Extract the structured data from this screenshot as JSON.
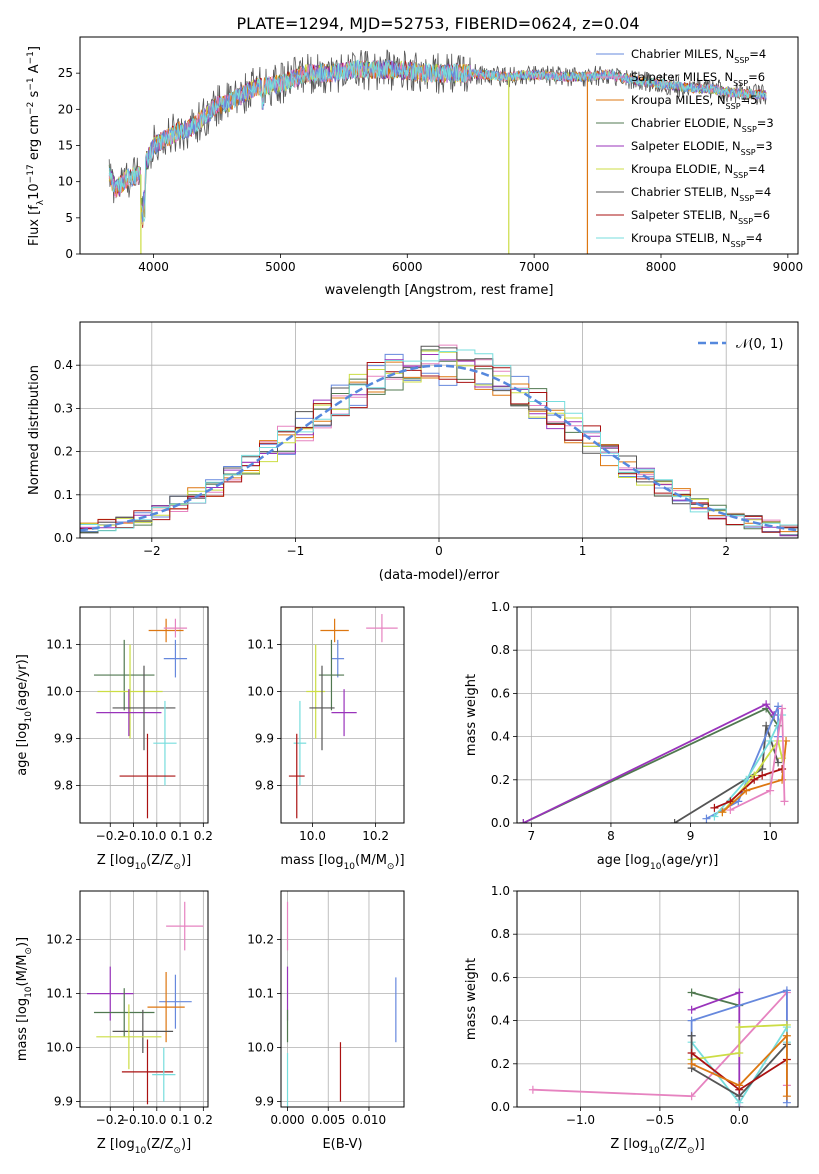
{
  "colors": {
    "Chabrier MILES": "#6688dd",
    "Salpeter MILES": "#e683c0",
    "Kroupa MILES": "#dd7711",
    "Chabrier ELODIE": "#507850",
    "Salpeter ELODIE": "#9933bb",
    "Kroupa ELODIE": "#ccdd44",
    "Chabrier STELIB": "#555555",
    "Salpeter STELIB": "#aa1111",
    "Kroupa STELIB": "#77dddd"
  },
  "chart_data": [
    {
      "id": "spectrum",
      "type": "line",
      "title": "PLATE=1294, MJD=52753, FIBERID=0624, z=0.04",
      "xlabel": "wavelength [Angstrom, rest frame]",
      "ylabel_parts": [
        "Flux [f",
        "λ",
        "10",
        "−17",
        " erg cm",
        "−2",
        " s",
        "−1",
        " A",
        "−1",
        "]"
      ],
      "xlim": [
        3420,
        9080
      ],
      "ylim": [
        0,
        30
      ],
      "xticks": [
        4000,
        5000,
        6000,
        7000,
        8000,
        9000
      ],
      "yticks": [
        0,
        5,
        10,
        15,
        20,
        25
      ],
      "x_range_data": [
        3650,
        8830
      ],
      "continuum_points": [
        [
          3650,
          11
        ],
        [
          3700,
          9
        ],
        [
          3800,
          10.5
        ],
        [
          3900,
          11
        ],
        [
          4000,
          15
        ],
        [
          4100,
          16
        ],
        [
          4200,
          17
        ],
        [
          4300,
          17.5
        ],
        [
          4400,
          19
        ],
        [
          4500,
          20.5
        ],
        [
          4600,
          21
        ],
        [
          4800,
          23
        ],
        [
          5000,
          23.5
        ],
        [
          5200,
          25
        ],
        [
          5400,
          25
        ],
        [
          5600,
          25.5
        ],
        [
          5800,
          25.5
        ],
        [
          6000,
          25.3
        ],
        [
          6200,
          25
        ],
        [
          6400,
          25
        ],
        [
          6600,
          24.8
        ],
        [
          6800,
          24.5
        ],
        [
          7000,
          24.8
        ],
        [
          7200,
          24.5
        ],
        [
          7400,
          24.5
        ],
        [
          7600,
          24.8
        ],
        [
          7800,
          24
        ],
        [
          8000,
          23.5
        ],
        [
          8200,
          23
        ],
        [
          8400,
          22.8
        ],
        [
          8600,
          22.2
        ],
        [
          8830,
          22
        ]
      ],
      "dips": [
        {
          "series": "Kroupa ELODIE",
          "x": 3900,
          "y_min": 0
        },
        {
          "series": "Kroupa ELODIE",
          "x": 6800,
          "y_min": 0
        },
        {
          "series": "Kroupa MILES",
          "x": 7420,
          "y_min": 0
        }
      ],
      "legend_position": "upper right",
      "series": [
        {
          "name": "Chabrier MILES",
          "label": "Chabrier MILES, N",
          "sub": "SSP",
          "suffix": "=4"
        },
        {
          "name": "Salpeter MILES",
          "label": "Salpeter MILES, N",
          "sub": "SSP",
          "suffix": "=6"
        },
        {
          "name": "Kroupa MILES",
          "label": "Kroupa MILES, N",
          "sub": "SSP",
          "suffix": "=5"
        },
        {
          "name": "Chabrier ELODIE",
          "label": "Chabrier ELODIE, N",
          "sub": "SSP",
          "suffix": "=3"
        },
        {
          "name": "Salpeter ELODIE",
          "label": "Salpeter ELODIE, N",
          "sub": "SSP",
          "suffix": "=3"
        },
        {
          "name": "Kroupa ELODIE",
          "label": "Kroupa ELODIE, N",
          "sub": "SSP",
          "suffix": "=4"
        },
        {
          "name": "Chabrier STELIB",
          "label": "Chabrier STELIB, N",
          "sub": "SSP",
          "suffix": "=4"
        },
        {
          "name": "Salpeter STELIB",
          "label": "Salpeter STELIB, N",
          "sub": "SSP",
          "suffix": "=6"
        },
        {
          "name": "Kroupa STELIB",
          "label": "Kroupa STELIB, N",
          "sub": "SSP",
          "suffix": "=4"
        }
      ]
    },
    {
      "id": "residuals",
      "type": "histogram",
      "xlabel": "(data-model)/error",
      "ylabel": "Normed distribution",
      "xlim": [
        -2.5,
        2.5
      ],
      "ylim": [
        0,
        0.5
      ],
      "xticks": [
        -2,
        -1,
        0,
        1,
        2
      ],
      "yticks": [
        0.0,
        0.1,
        0.2,
        0.3,
        0.4
      ],
      "grid": true,
      "bin_width": 0.125,
      "legend_label": "𝒩(0, 1)",
      "legend_position": "upper right",
      "normal_curve": {
        "mean": 0,
        "sigma": 1,
        "color": "#5588dd"
      }
    },
    {
      "id": "age-vs-Z",
      "type": "errorbar",
      "xlabel_parts": [
        "Z [log",
        "10",
        "(Z/Z",
        "⊙",
        ")]"
      ],
      "ylabel_parts": [
        "age  [log",
        "10",
        "(age/yr)]"
      ],
      "xlim": [
        -0.33,
        0.22
      ],
      "ylim": [
        9.72,
        10.18
      ],
      "xticks": [
        -0.2,
        -0.1,
        0.0,
        0.1,
        0.2
      ],
      "yticks": [
        9.8,
        9.9,
        10.0,
        10.1
      ],
      "grid": true,
      "points": [
        {
          "series": "Kroupa MILES",
          "x": 0.04,
          "y": 10.13,
          "xerr": 0.075,
          "yerr": 0.025
        },
        {
          "series": "Salpeter MILES",
          "x": 0.08,
          "y": 10.135,
          "xerr": 0.05,
          "yerr": 0.02
        },
        {
          "series": "Chabrier MILES",
          "x": 0.08,
          "y": 10.07,
          "xerr": 0.05,
          "yerr": 0.04
        },
        {
          "series": "Chabrier ELODIE",
          "x": -0.14,
          "y": 10.035,
          "xerr": 0.13,
          "yerr": 0.075
        },
        {
          "series": "Kroupa ELODIE",
          "x": -0.115,
          "y": 10.0,
          "xerr": 0.14,
          "yerr": 0.1
        },
        {
          "series": "Salpeter ELODIE",
          "x": -0.12,
          "y": 9.955,
          "xerr": 0.14,
          "yerr": 0.05
        },
        {
          "series": "Chabrier STELIB",
          "x": -0.055,
          "y": 9.965,
          "xerr": 0.135,
          "yerr": 0.09
        },
        {
          "series": "Kroupa STELIB",
          "x": 0.035,
          "y": 9.89,
          "xerr": 0.05,
          "yerr": 0.09
        },
        {
          "series": "Salpeter STELIB",
          "x": -0.04,
          "y": 9.82,
          "xerr": 0.12,
          "yerr": 0.09
        }
      ]
    },
    {
      "id": "age-vs-mass",
      "type": "errorbar",
      "xlabel_parts": [
        "mass [log",
        "10",
        "(M/M",
        "⊙",
        ")]"
      ],
      "ylabel_parts": [],
      "xlim": [
        9.9,
        10.29
      ],
      "ylim": [
        9.72,
        10.18
      ],
      "xticks": [
        10.0,
        10.2
      ],
      "yticks": [
        9.8,
        9.9,
        10.0,
        10.1
      ],
      "grid": true,
      "points": [
        {
          "series": "Kroupa MILES",
          "x": 10.07,
          "y": 10.13,
          "xerr": 0.045,
          "yerr": 0.025
        },
        {
          "series": "Salpeter MILES",
          "x": 10.22,
          "y": 10.135,
          "xerr": 0.05,
          "yerr": 0.03
        },
        {
          "series": "Chabrier MILES",
          "x": 10.08,
          "y": 10.07,
          "xerr": 0.02,
          "yerr": 0.04
        },
        {
          "series": "Chabrier ELODIE",
          "x": 10.06,
          "y": 10.035,
          "xerr": 0.04,
          "yerr": 0.075
        },
        {
          "series": "Kroupa ELODIE",
          "x": 10.01,
          "y": 10.0,
          "xerr": 0.03,
          "yerr": 0.1
        },
        {
          "series": "Salpeter ELODIE",
          "x": 10.1,
          "y": 9.955,
          "xerr": 0.04,
          "yerr": 0.05
        },
        {
          "series": "Chabrier STELIB",
          "x": 10.03,
          "y": 9.965,
          "xerr": 0.04,
          "yerr": 0.09
        },
        {
          "series": "Kroupa STELIB",
          "x": 9.96,
          "y": 9.89,
          "xerr": 0.02,
          "yerr": 0.09
        },
        {
          "series": "Salpeter STELIB",
          "x": 9.95,
          "y": 9.82,
          "xerr": 0.025,
          "yerr": 0.09
        }
      ]
    },
    {
      "id": "massweight-vs-age",
      "type": "line",
      "xlabel_parts": [
        "age  [log",
        "10",
        "(age/yr)]"
      ],
      "ylabel": "mass weight",
      "xlim": [
        6.82,
        10.35
      ],
      "ylim": [
        0,
        1
      ],
      "xticks": [
        7,
        8,
        9,
        10
      ],
      "yticks": [
        0.0,
        0.2,
        0.4,
        0.6,
        0.8,
        1.0
      ],
      "grid": true,
      "series": [
        {
          "name": "Chabrier STELIB",
          "points": [
            [
              8.8,
              0.0
            ],
            [
              9.9,
              0.25
            ],
            [
              9.95,
              0.45
            ],
            [
              10.1,
              0.28
            ]
          ]
        },
        {
          "name": "Chabrier ELODIE",
          "points": [
            [
              6.9,
              0.0
            ],
            [
              9.95,
              0.53
            ],
            [
              10.1,
              0.45
            ]
          ]
        },
        {
          "name": "Salpeter ELODIE",
          "points": [
            [
              6.9,
              0.0
            ],
            [
              9.95,
              0.55
            ],
            [
              10.05,
              0.5
            ]
          ]
        },
        {
          "name": "Chabrier MILES",
          "points": [
            [
              9.2,
              0.02
            ],
            [
              9.6,
              0.1
            ],
            [
              10.1,
              0.54
            ],
            [
              10.1,
              0.4
            ]
          ]
        },
        {
          "name": "Kroupa STELIB",
          "points": [
            [
              9.3,
              0.03
            ],
            [
              9.7,
              0.2
            ],
            [
              10.0,
              0.38
            ],
            [
              10.15,
              0.5
            ]
          ]
        },
        {
          "name": "Kroupa ELODIE",
          "points": [
            [
              9.4,
              0.05
            ],
            [
              9.8,
              0.22
            ],
            [
              10.1,
              0.38
            ],
            [
              10.15,
              0.3
            ]
          ]
        },
        {
          "name": "Salpeter STELIB",
          "points": [
            [
              9.3,
              0.07
            ],
            [
              9.5,
              0.1
            ],
            [
              9.8,
              0.2
            ],
            [
              9.9,
              0.22
            ],
            [
              10.15,
              0.25
            ]
          ]
        },
        {
          "name": "Kroupa MILES",
          "points": [
            [
              9.4,
              0.05
            ],
            [
              9.7,
              0.15
            ],
            [
              10.15,
              0.2
            ],
            [
              10.2,
              0.38
            ]
          ]
        },
        {
          "name": "Salpeter MILES",
          "points": [
            [
              9.5,
              0.06
            ],
            [
              10.0,
              0.15
            ],
            [
              10.15,
              0.53
            ],
            [
              10.18,
              0.1
            ]
          ]
        }
      ]
    },
    {
      "id": "mass-vs-Z",
      "type": "errorbar",
      "xlabel_parts": [
        "Z [log",
        "10",
        "(Z/Z",
        "⊙",
        ")]"
      ],
      "ylabel_parts": [
        "mass [log",
        "10",
        "(M/M",
        "⊙",
        ")]"
      ],
      "xlim": [
        -0.33,
        0.22
      ],
      "ylim": [
        9.89,
        10.29
      ],
      "xticks": [
        -0.2,
        -0.1,
        0.0,
        0.1,
        0.2
      ],
      "yticks": [
        9.9,
        10.0,
        10.1,
        10.2
      ],
      "grid": true,
      "points": [
        {
          "series": "Salpeter MILES",
          "x": 0.12,
          "y": 10.225,
          "xerr": 0.08,
          "yerr": 0.045
        },
        {
          "series": "Salpeter ELODIE",
          "x": -0.2,
          "y": 10.1,
          "xerr": 0.1,
          "yerr": 0.05
        },
        {
          "series": "Chabrier MILES",
          "x": 0.08,
          "y": 10.085,
          "xerr": 0.07,
          "yerr": 0.05
        },
        {
          "series": "Kroupa MILES",
          "x": 0.04,
          "y": 10.075,
          "xerr": 0.08,
          "yerr": 0.065
        },
        {
          "series": "Chabrier ELODIE",
          "x": -0.14,
          "y": 10.065,
          "xerr": 0.13,
          "yerr": 0.045
        },
        {
          "series": "Chabrier STELIB",
          "x": -0.06,
          "y": 10.03,
          "xerr": 0.13,
          "yerr": 0.04
        },
        {
          "series": "Kroupa ELODIE",
          "x": -0.12,
          "y": 10.02,
          "xerr": 0.14,
          "yerr": 0.06
        },
        {
          "series": "Salpeter STELIB",
          "x": -0.04,
          "y": 9.955,
          "xerr": 0.11,
          "yerr": 0.06
        },
        {
          "series": "Kroupa STELIB",
          "x": 0.03,
          "y": 9.95,
          "xerr": 0.05,
          "yerr": 0.05
        }
      ]
    },
    {
      "id": "mass-vs-EBV",
      "type": "errorbar",
      "xlabel": "E(B-V)",
      "ylabel_parts": [],
      "xlim": [
        -0.0008,
        0.0143
      ],
      "ylim": [
        9.89,
        10.29
      ],
      "xticks": [
        0.0,
        0.005,
        0.01
      ],
      "xtick_labels": [
        "0.000",
        "0.005",
        "0.010"
      ],
      "yticks": [
        9.9,
        10.0,
        10.1,
        10.2
      ],
      "grid": true,
      "points": [
        {
          "series": "Salpeter MILES",
          "x": 0.0,
          "y": 10.225,
          "xerr": 0,
          "yerr": 0.045
        },
        {
          "series": "Salpeter ELODIE",
          "x": 0.0,
          "y": 10.1,
          "xerr": 0,
          "yerr": 0.05
        },
        {
          "series": "Chabrier ELODIE",
          "x": 0.0,
          "y": 10.04,
          "xerr": 0,
          "yerr": 0.03
        },
        {
          "series": "Kroupa STELIB",
          "x": 0.0,
          "y": 9.94,
          "xerr": 0,
          "yerr": 0.05
        },
        {
          "series": "Chabrier MILES",
          "x": 0.0133,
          "y": 10.07,
          "xerr": 0,
          "yerr": 0.06
        },
        {
          "series": "Salpeter STELIB",
          "x": 0.0065,
          "y": 9.955,
          "xerr": 0,
          "yerr": 0.055
        }
      ]
    },
    {
      "id": "massweight-vs-Z",
      "type": "line",
      "xlabel_parts": [
        "Z [log",
        "10",
        "(Z/Z",
        "⊙",
        ")]"
      ],
      "ylabel": "mass weight",
      "xlim": [
        -1.4,
        0.37
      ],
      "ylim": [
        0,
        1
      ],
      "xticks": [
        -1.0,
        -0.5,
        0.0
      ],
      "xtick_labels": [
        "−1.0",
        "−0.5",
        "0.0"
      ],
      "yticks": [
        0.0,
        0.2,
        0.4,
        0.6,
        0.8,
        1.0
      ],
      "grid": true,
      "series": [
        {
          "name": "Salpeter MILES",
          "points": [
            [
              -1.3,
              0.08
            ],
            [
              -0.3,
              0.05
            ],
            [
              0.3,
              0.53
            ],
            [
              0.3,
              0.1
            ]
          ]
        },
        {
          "name": "Chabrier ELODIE",
          "points": [
            [
              -0.3,
              0.53
            ],
            [
              0.0,
              0.47
            ]
          ]
        },
        {
          "name": "Salpeter ELODIE",
          "points": [
            [
              -0.3,
              0.45
            ],
            [
              0.0,
              0.53
            ],
            [
              0.0,
              0.0
            ]
          ]
        },
        {
          "name": "Chabrier MILES",
          "points": [
            [
              -0.3,
              0.33
            ],
            [
              -0.3,
              0.4
            ],
            [
              0.3,
              0.54
            ],
            [
              0.3,
              0.02
            ]
          ]
        },
        {
          "name": "Kroupa STELIB",
          "points": [
            [
              -0.3,
              0.3
            ],
            [
              0.0,
              0.02
            ],
            [
              0.3,
              0.37
            ],
            [
              0.3,
              0.3
            ]
          ]
        },
        {
          "name": "Kroupa ELODIE",
          "points": [
            [
              -0.3,
              0.22
            ],
            [
              0.0,
              0.25
            ],
            [
              0.0,
              0.37
            ],
            [
              0.3,
              0.38
            ]
          ]
        },
        {
          "name": "Chabrier STELIB",
          "points": [
            [
              -0.3,
              0.33
            ],
            [
              -0.3,
              0.18
            ],
            [
              0.0,
              0.05
            ],
            [
              0.3,
              0.29
            ]
          ]
        },
        {
          "name": "Salpeter STELIB",
          "points": [
            [
              -0.3,
              0.25
            ],
            [
              0.0,
              0.08
            ],
            [
              0.3,
              0.22
            ]
          ]
        },
        {
          "name": "Kroupa MILES",
          "points": [
            [
              -0.3,
              0.2
            ],
            [
              0.0,
              0.1
            ],
            [
              0.3,
              0.33
            ],
            [
              0.3,
              0.05
            ]
          ]
        }
      ]
    }
  ]
}
